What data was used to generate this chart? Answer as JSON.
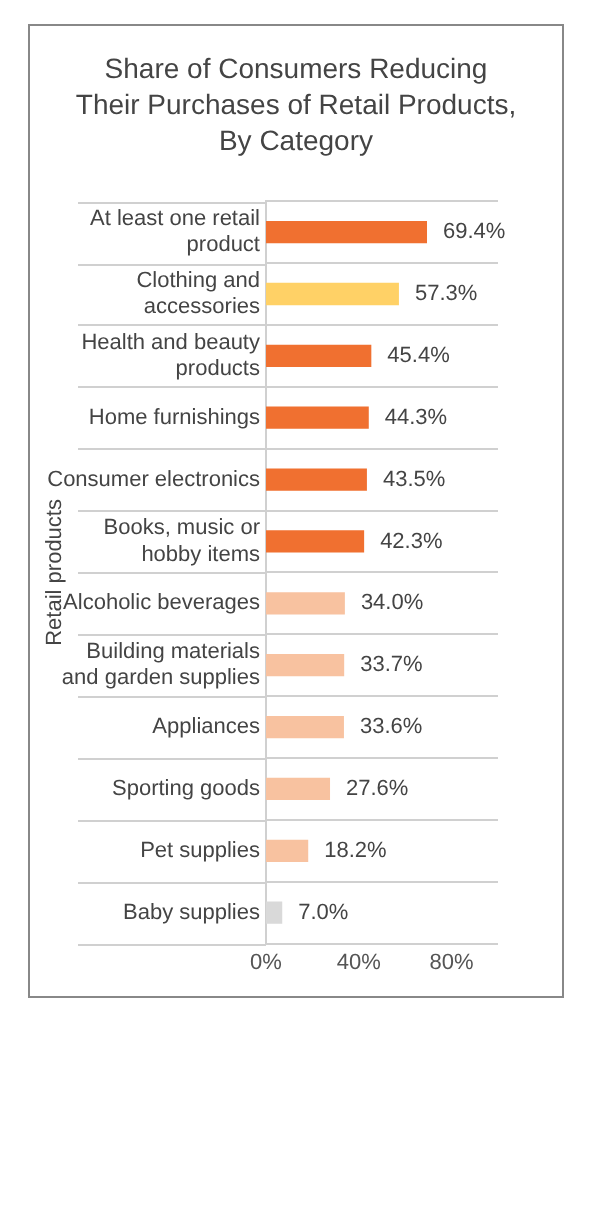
{
  "chart_data": {
    "type": "bar",
    "orientation": "horizontal",
    "title": "Share of Consumers Reducing Their Purchases of Retail Products, By Category",
    "ylabel": "Retail products",
    "categories": [
      "At least one retail product",
      "Clothing and accessories",
      "Health and beauty products",
      "Home furnishings",
      "Consumer electronics",
      "Books, music or hobby items",
      "Alcoholic beverages",
      "Building materials and garden supplies",
      "Appliances",
      "Sporting goods",
      "Pet supplies",
      "Baby supplies"
    ],
    "values": [
      69.4,
      57.3,
      45.4,
      44.3,
      43.5,
      42.3,
      34.0,
      33.7,
      33.6,
      27.6,
      18.2,
      7.0
    ],
    "value_labels": [
      "69.4%",
      "57.3%",
      "45.4%",
      "44.3%",
      "43.5%",
      "42.3%",
      "34.0%",
      "33.7%",
      "33.6%",
      "27.6%",
      "18.2%",
      "7.0%"
    ],
    "colors": [
      "#f07030",
      "#ffd166",
      "#f07030",
      "#f07030",
      "#f07030",
      "#f07030",
      "#f8c2a0",
      "#f8c2a0",
      "#f8c2a0",
      "#f8c2a0",
      "#f8c2a0",
      "#d9d9d9"
    ],
    "xlim": [
      0,
      100
    ],
    "xticks": [
      {
        "value": 0,
        "label": "0%"
      },
      {
        "value": 40,
        "label": "40%"
      },
      {
        "value": 80,
        "label": "80%"
      }
    ],
    "grid": "y",
    "legend": false
  }
}
